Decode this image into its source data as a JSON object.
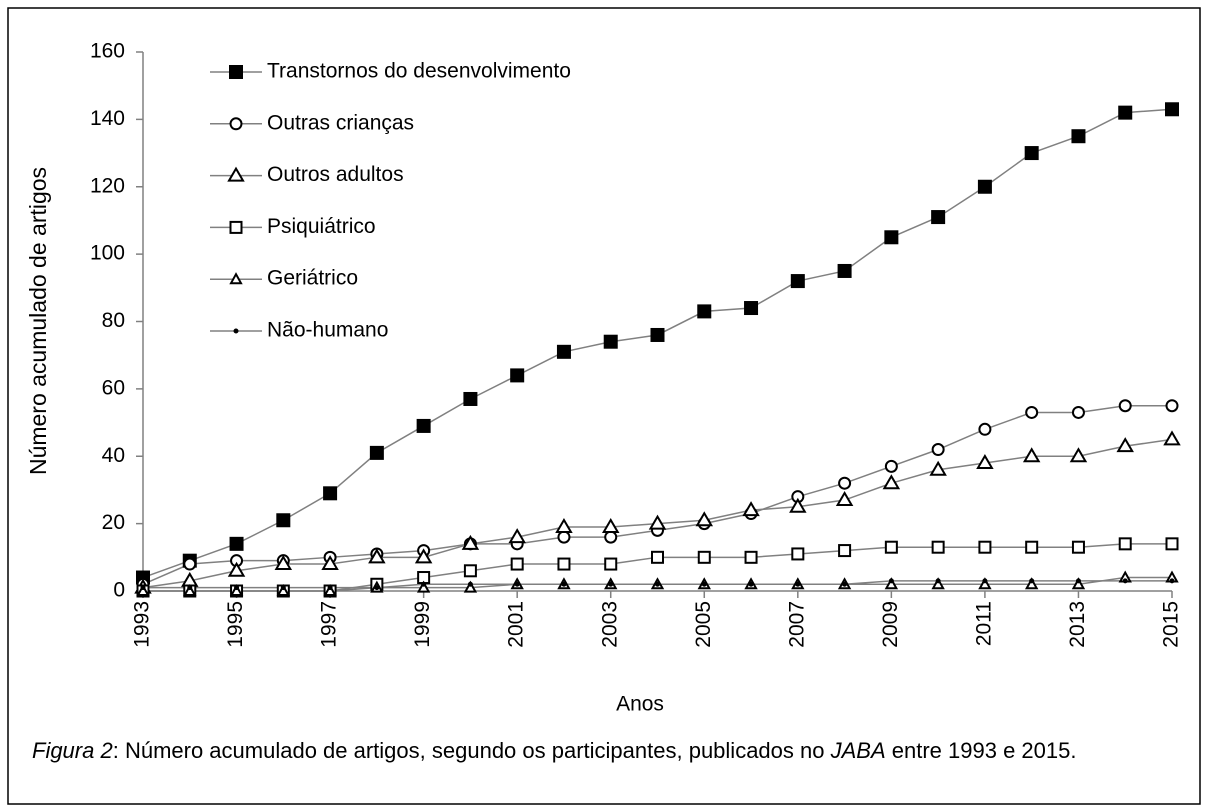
{
  "chart_data": {
    "type": "line",
    "x_label": "Anos",
    "y_label": "Número acumulado de artigos",
    "x": [
      1993,
      1994,
      1995,
      1996,
      1997,
      1998,
      1999,
      2000,
      2001,
      2002,
      2003,
      2004,
      2005,
      2006,
      2007,
      2008,
      2009,
      2010,
      2011,
      2012,
      2013,
      2014,
      2015
    ],
    "xlim": [
      1993,
      2015
    ],
    "xticks": [
      1993,
      1995,
      1997,
      1999,
      2001,
      2003,
      2005,
      2007,
      2009,
      2011,
      2013,
      2015
    ],
    "ylim": [
      0,
      160
    ],
    "yticks": [
      0,
      20,
      40,
      60,
      80,
      100,
      120,
      140,
      160
    ],
    "legend": "upper left",
    "grid": false,
    "series": [
      {
        "name": "Transtornos do desenvolvimento",
        "color": "#808080",
        "marker": "square-filled",
        "values": [
          4,
          9,
          14,
          21,
          29,
          41,
          49,
          57,
          64,
          71,
          74,
          76,
          83,
          84,
          92,
          95,
          105,
          111,
          120,
          130,
          135,
          142,
          143
        ]
      },
      {
        "name": "Outras crianças",
        "color": "#808080",
        "marker": "circle-open",
        "values": [
          2,
          8,
          9,
          9,
          10,
          11,
          12,
          14,
          14,
          16,
          16,
          18,
          20,
          23,
          28,
          32,
          37,
          42,
          48,
          53,
          53,
          55,
          55
        ]
      },
      {
        "name": "Outros adultos",
        "color": "#808080",
        "marker": "triangle-open",
        "values": [
          1,
          3,
          6,
          8,
          8,
          10,
          10,
          14,
          16,
          19,
          19,
          20,
          21,
          24,
          25,
          27,
          32,
          36,
          38,
          40,
          40,
          43,
          45
        ]
      },
      {
        "name": "Psiquiátrico",
        "color": "#808080",
        "marker": "square-open",
        "values": [
          0,
          0,
          0,
          0,
          0,
          2,
          4,
          6,
          8,
          8,
          8,
          10,
          10,
          10,
          11,
          12,
          13,
          13,
          13,
          13,
          13,
          14,
          14
        ]
      },
      {
        "name": "Geriátrico",
        "color": "#808080",
        "marker": "triangle-small",
        "values": [
          0,
          0,
          0,
          0,
          0,
          1,
          1,
          1,
          2,
          2,
          2,
          2,
          2,
          2,
          2,
          2,
          2,
          2,
          2,
          2,
          2,
          4,
          4
        ]
      },
      {
        "name": "Não-humano",
        "color": "#808080",
        "marker": "dot",
        "values": [
          1,
          1,
          1,
          1,
          1,
          1,
          2,
          2,
          2,
          2,
          2,
          2,
          2,
          2,
          2,
          2,
          3,
          3,
          3,
          3,
          3,
          3,
          3
        ]
      }
    ]
  },
  "caption": [
    "Figura 2",
    ":  Número acumulado de artigos, segundo os participantes, publicados no ",
    "JABA",
    " entre 1993 e 2015."
  ]
}
